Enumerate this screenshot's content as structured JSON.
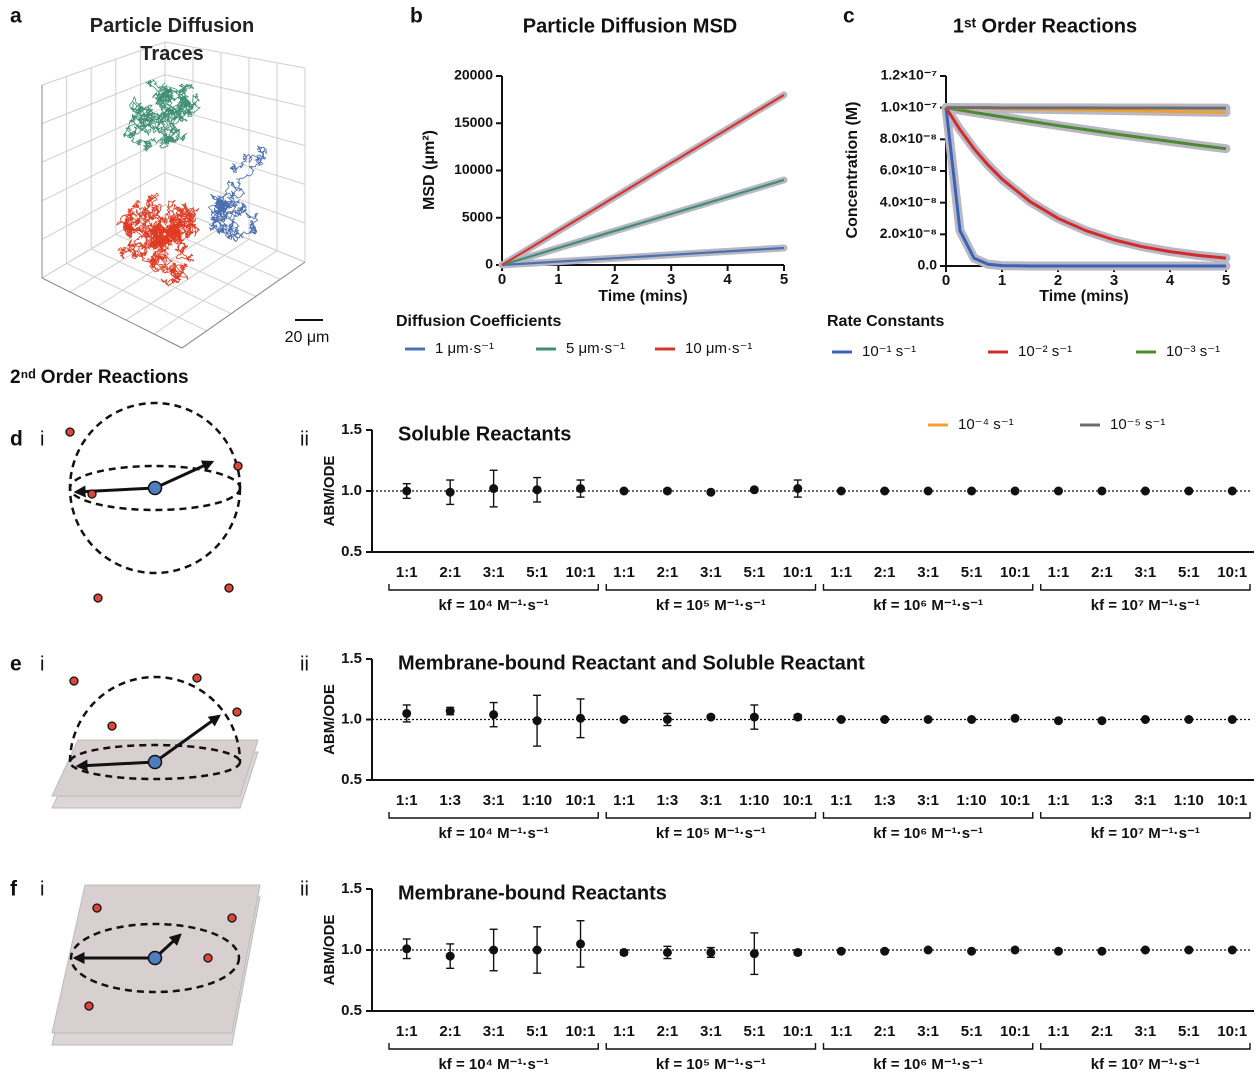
{
  "section_title": "2ⁿᵈ Order Reactions",
  "chart_data": [
    {
      "type": "traces3d",
      "panel": "a",
      "title": "Particle Diffusion Traces",
      "scale_label": "20 μm"
    },
    {
      "type": "line",
      "panel": "b",
      "title": "Particle Diffusion MSD",
      "x_label": "Time (mins)",
      "y_label": "MSD (μm²)",
      "legend_title": "Diffusion Coefficients",
      "x": [
        0,
        1,
        2,
        3,
        4,
        5
      ],
      "series": [
        {
          "name": "1 μm·s⁻¹",
          "color": "#4a72b0",
          "values": [
            0,
            360,
            720,
            1080,
            1440,
            1800
          ]
        },
        {
          "name": "5 μm·s⁻¹",
          "color": "#3f8f73",
          "values": [
            0,
            1800,
            3600,
            5400,
            7200,
            9000
          ]
        },
        {
          "name": "10 μm·s⁻¹",
          "color": "#d9342b",
          "values": [
            0,
            3600,
            7200,
            10800,
            14400,
            18000
          ]
        }
      ],
      "xlim": [
        0,
        5
      ],
      "ylim": [
        0,
        20000
      ],
      "xticks": [
        0,
        1,
        2,
        3,
        4,
        5
      ],
      "yticks": [
        0,
        5000,
        10000,
        15000,
        20000
      ],
      "halo_color": "#b9b7c3"
    },
    {
      "type": "line",
      "panel": "c",
      "title": "1ˢᵗ Order Reactions",
      "x_label": "Time (mins)",
      "y_label": "Concentration (M)",
      "legend_title": "Rate Constants",
      "x": [
        0,
        0.25,
        0.5,
        0.75,
        1,
        1.5,
        2,
        2.5,
        3,
        3.5,
        4,
        4.5,
        5
      ],
      "series": [
        {
          "name": "10⁻¹ s⁻¹",
          "color": "#3a63b8",
          "values": [
            1e-07,
            2.23e-08,
            4.98e-09,
            1.11e-09,
            2.5e-10,
            0,
            0,
            0,
            0,
            0,
            0,
            0,
            0
          ]
        },
        {
          "name": "10⁻² s⁻¹",
          "color": "#d62a2a",
          "values": [
            1e-07,
            8.61e-08,
            7.41e-08,
            6.38e-08,
            5.49e-08,
            4.07e-08,
            3.01e-08,
            2.23e-08,
            1.65e-08,
            1.22e-08,
            9.1e-09,
            6.7e-09,
            5e-09
          ]
        },
        {
          "name": "10⁻³ s⁻¹",
          "color": "#4b8a2e",
          "values": [
            1e-07,
            9.85e-08,
            9.7e-08,
            9.56e-08,
            9.42e-08,
            9.14e-08,
            8.87e-08,
            8.61e-08,
            8.35e-08,
            8.11e-08,
            7.87e-08,
            7.63e-08,
            7.41e-08
          ]
        },
        {
          "name": "10⁻⁴ s⁻¹",
          "color": "#f0a030",
          "values": [
            1e-07,
            9.985e-08,
            9.97e-08,
            9.955e-08,
            9.94e-08,
            9.91e-08,
            9.88e-08,
            9.85e-08,
            9.82e-08,
            9.79e-08,
            9.76e-08,
            9.73e-08,
            9.7e-08
          ]
        },
        {
          "name": "10⁻⁵ s⁻¹",
          "color": "#6d6d6d",
          "values": [
            1e-07,
            1e-07,
            1e-07,
            1e-07,
            9.99e-08,
            9.99e-08,
            9.99e-08,
            9.99e-08,
            9.98e-08,
            9.98e-08,
            9.98e-08,
            9.97e-08,
            9.97e-08
          ]
        }
      ],
      "xlim": [
        0,
        5
      ],
      "ylim": [
        0,
        1.2e-07
      ],
      "xticks": [
        0,
        1,
        2,
        3,
        4,
        5
      ],
      "yticks": [
        {
          "value": 0,
          "label": "0.0"
        },
        {
          "value": 2e-08,
          "label": "2.0×10⁻⁸"
        },
        {
          "value": 4e-08,
          "label": "4.0×10⁻⁸"
        },
        {
          "value": 6e-08,
          "label": "6.0×10⁻⁸"
        },
        {
          "value": 8e-08,
          "label": "8.0×10⁻⁸"
        },
        {
          "value": 1e-07,
          "label": "1.0×10⁻⁷"
        },
        {
          "value": 1.2e-07,
          "label": "1.2×10⁻⁷"
        }
      ],
      "halo_color": "#b9b7c3"
    },
    {
      "type": "dot_error",
      "panel": "d",
      "diagram": "i",
      "subpanel": "ii",
      "title": "Soluble Reactants",
      "y_label": "ABM/ODE",
      "categories": [
        "1:1",
        "2:1",
        "3:1",
        "5:1",
        "10:1",
        "1:1",
        "2:1",
        "3:1",
        "5:1",
        "10:1",
        "1:1",
        "2:1",
        "3:1",
        "5:1",
        "10:1",
        "1:1",
        "2:1",
        "3:1",
        "5:1",
        "10:1"
      ],
      "groups": [
        "kf = 10⁴ M⁻¹·s⁻¹",
        "kf = 10⁵ M⁻¹·s⁻¹",
        "kf = 10⁶ M⁻¹·s⁻¹",
        "kf = 10⁷ M⁻¹·s⁻¹"
      ],
      "values": [
        1.0,
        0.99,
        1.02,
        1.01,
        1.02,
        1.0,
        1.0,
        0.99,
        1.01,
        1.02,
        1.0,
        1.0,
        1.0,
        1.0,
        1.0,
        1.0,
        1.0,
        1.0,
        1.0,
        1.0
      ],
      "errors": [
        0.06,
        0.1,
        0.15,
        0.1,
        0.07,
        0.01,
        0.015,
        0.01,
        0.01,
        0.07,
        0.005,
        0.005,
        0.005,
        0.005,
        0.005,
        0.005,
        0.005,
        0.005,
        0.005,
        0.005
      ],
      "ylim": [
        0.5,
        1.5
      ],
      "yticks": [
        0.5,
        {
          "value": 1,
          "label": "1.0"
        },
        1.5
      ],
      "reference": 1,
      "color": "#111111"
    },
    {
      "type": "dot_error",
      "panel": "e",
      "diagram": "i",
      "subpanel": "ii",
      "title": "Membrane-bound Reactant and Soluble Reactant",
      "y_label": "ABM/ODE",
      "categories": [
        "1:1",
        "1:3",
        "3:1",
        "1:10",
        "10:1",
        "1:1",
        "1:3",
        "3:1",
        "1:10",
        "10:1",
        "1:1",
        "1:3",
        "3:1",
        "1:10",
        "10:1",
        "1:1",
        "1:3",
        "3:1",
        "1:10",
        "10:1"
      ],
      "groups": [
        "kf = 10⁴ M⁻¹·s⁻¹",
        "kf = 10⁵ M⁻¹·s⁻¹",
        "kf = 10⁶ M⁻¹·s⁻¹",
        "kf = 10⁷ M⁻¹·s⁻¹"
      ],
      "values": [
        1.05,
        1.07,
        1.04,
        0.99,
        1.01,
        1.0,
        1.0,
        1.02,
        1.02,
        1.02,
        1.0,
        1.0,
        1.0,
        1.0,
        1.01,
        0.99,
        0.99,
        1.0,
        1.0,
        1.0
      ],
      "errors": [
        0.07,
        0.03,
        0.1,
        0.21,
        0.16,
        0.01,
        0.05,
        0.015,
        0.1,
        0.02,
        0.005,
        0.005,
        0.005,
        0.005,
        0.005,
        0.005,
        0.005,
        0.005,
        0.005,
        0.005
      ],
      "ylim": [
        0.5,
        1.5
      ],
      "yticks": [
        0.5,
        {
          "value": 1,
          "label": "1.0"
        },
        1.5
      ],
      "reference": 1,
      "color": "#111111"
    },
    {
      "type": "dot_error",
      "panel": "f",
      "diagram": "i",
      "subpanel": "ii",
      "title": "Membrane-bound Reactants",
      "y_label": "ABM/ODE",
      "categories": [
        "1:1",
        "2:1",
        "3:1",
        "5:1",
        "10:1",
        "1:1",
        "2:1",
        "3:1",
        "5:1",
        "10:1",
        "1:1",
        "2:1",
        "3:1",
        "5:1",
        "10:1",
        "1:1",
        "2:1",
        "3:1",
        "5:1",
        "10:1"
      ],
      "groups": [
        "kf = 10⁴ M⁻¹·s⁻¹",
        "kf = 10⁵ M⁻¹·s⁻¹",
        "kf = 10⁶ M⁻¹·s⁻¹",
        "kf = 10⁷ M⁻¹·s⁻¹"
      ],
      "values": [
        1.01,
        0.95,
        1.0,
        1.0,
        1.05,
        0.98,
        0.98,
        0.98,
        0.97,
        0.98,
        0.99,
        0.99,
        1.0,
        0.99,
        1.0,
        0.99,
        0.99,
        1.0,
        1.0,
        1.0
      ],
      "errors": [
        0.08,
        0.1,
        0.17,
        0.19,
        0.19,
        0.02,
        0.05,
        0.04,
        0.17,
        0.02,
        0.005,
        0.005,
        0.005,
        0.005,
        0.005,
        0.005,
        0.005,
        0.005,
        0.005,
        0.005
      ],
      "ylim": [
        0.5,
        1.5
      ],
      "yticks": [
        0.5,
        {
          "value": 1,
          "label": "1.0"
        },
        1.5
      ],
      "reference": 1,
      "color": "#111111"
    }
  ]
}
